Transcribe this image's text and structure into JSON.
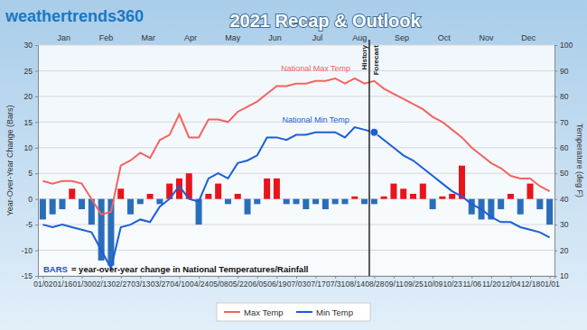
{
  "chart_data": {
    "type": "bar",
    "title": "2021 Recap & Outlook",
    "logo": "weathertrends360",
    "y_label": "Year-Over-Year Change (Bars)",
    "y2_label": "Temperature (deg F)",
    "note": {
      "bold": "BARS",
      "text": "= year-over-year change in National Temperatures/Rainfall"
    },
    "months": [
      "Jan",
      "Feb",
      "Mar",
      "Apr",
      "May",
      "Jun",
      "Jul",
      "Aug",
      "Sep",
      "Oct",
      "Nov",
      "Dec"
    ],
    "divider": {
      "at": "08/28",
      "left": "History",
      "right": "Forecast"
    },
    "categories": [
      "01/02",
      null,
      "01/16",
      null,
      "01/30",
      null,
      "02/13",
      null,
      "02/27",
      null,
      "03/13",
      null,
      "03/27",
      null,
      "04/10",
      null,
      "04/24",
      null,
      "05/08",
      null,
      "05/22",
      null,
      "06/05",
      null,
      "06/19",
      null,
      "07/03",
      null,
      "07/17",
      null,
      "07/31",
      null,
      "08/14",
      null,
      "08/28",
      null,
      "09/11",
      null,
      "09/25",
      null,
      "10/09",
      null,
      "10/23",
      null,
      "11/06",
      null,
      "11/20",
      null,
      "12/04",
      null,
      "12/18",
      null,
      "01/01"
    ],
    "series": [
      {
        "type": "bar",
        "values": [
          -4,
          -3,
          -2,
          2,
          -2,
          -5,
          -12,
          -13,
          2,
          -3,
          -1,
          1,
          -1,
          3,
          4,
          5,
          -5,
          1,
          3,
          -1,
          1,
          -3,
          -1,
          4,
          4,
          -1,
          -1,
          -2,
          -1,
          -2,
          -1,
          -1,
          0.5,
          -1,
          -1,
          0.5,
          3,
          2,
          1,
          3,
          -2,
          0.5,
          1,
          6.5,
          -3,
          -4,
          -4,
          -2,
          1,
          -3,
          3,
          -2,
          -5
        ],
        "colors": [
          "#2a6ebb",
          "#2a6ebb",
          "#2a6ebb",
          "#e8141b",
          "#2a6ebb",
          "#2a6ebb",
          "#2a6ebb",
          "#2a6ebb",
          "#e8141b",
          "#2a6ebb",
          "#2a6ebb",
          "#e8141b",
          "#2a6ebb",
          "#e8141b",
          "#e8141b",
          "#e8141b",
          "#2a6ebb",
          "#e8141b",
          "#e8141b",
          "#2a6ebb",
          "#e8141b",
          "#2a6ebb",
          "#2a6ebb",
          "#e8141b",
          "#e8141b",
          "#2a6ebb",
          "#2a6ebb",
          "#2a6ebb",
          "#2a6ebb",
          "#2a6ebb",
          "#2a6ebb",
          "#2a6ebb",
          "#e8141b",
          "#2a6ebb",
          "#2a6ebb",
          "#e8141b",
          "#e8141b",
          "#e8141b",
          "#e8141b",
          "#e8141b",
          "#2a6ebb",
          "#e8141b",
          "#e8141b",
          "#e8141b",
          "#2a6ebb",
          "#2a6ebb",
          "#2a6ebb",
          "#2a6ebb",
          "#e8141b",
          "#2a6ebb",
          "#e8141b",
          "#2a6ebb",
          "#2a6ebb"
        ]
      },
      {
        "name": "Max Temp",
        "label": "National Max Temp",
        "type": "line",
        "axis": "y2",
        "color": "#f4635f",
        "values": [
          47,
          46,
          47,
          47,
          46,
          40,
          34,
          35,
          53,
          55,
          58,
          56,
          63,
          65,
          73,
          64,
          64,
          71,
          71,
          70,
          74,
          76,
          78,
          81,
          84,
          84,
          85,
          85,
          86,
          86,
          87,
          85,
          87,
          85,
          86,
          83,
          81,
          79,
          77,
          75,
          72,
          70,
          67,
          64,
          60,
          57,
          54,
          52,
          49,
          48,
          48,
          45,
          43
        ]
      },
      {
        "name": "Min Temp",
        "label": "National Min Temp",
        "type": "line",
        "axis": "y2",
        "color": "#1a5fd8",
        "values": [
          30,
          29,
          30,
          29,
          28,
          27,
          20,
          13,
          29,
          30,
          32,
          31,
          37,
          40,
          45,
          40,
          39,
          48,
          50,
          48,
          54,
          55,
          57,
          64,
          64,
          63,
          65,
          65,
          66,
          66,
          66,
          64,
          68,
          67,
          66,
          63,
          60,
          57,
          55,
          52,
          49,
          46,
          43,
          41,
          38,
          36,
          33,
          31,
          31,
          29,
          28,
          27,
          25
        ]
      }
    ],
    "ylim": [
      -15,
      30
    ],
    "yticks": [
      -15,
      -10,
      -5,
      0,
      5,
      10,
      15,
      20,
      25,
      30
    ],
    "y2lim": [
      10,
      100
    ],
    "y2ticks": [
      10,
      20,
      30,
      40,
      50,
      60,
      70,
      80,
      90,
      100
    ],
    "grid": true,
    "legend": "bottom"
  }
}
